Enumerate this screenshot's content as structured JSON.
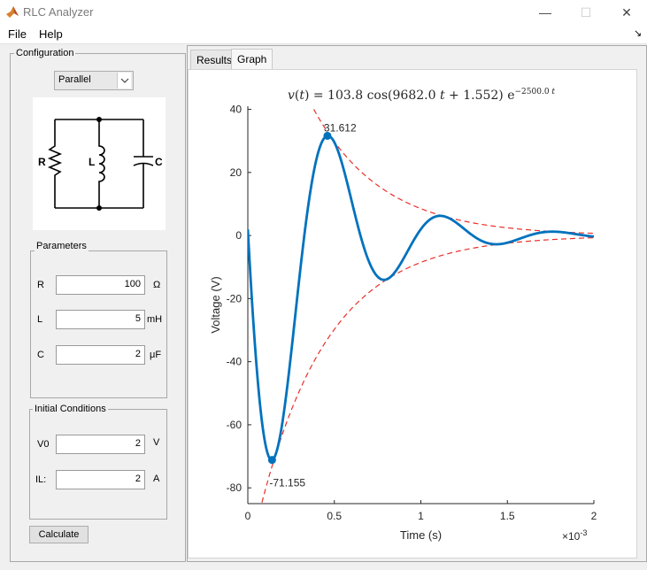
{
  "window": {
    "title": "RLC Analyzer",
    "minimize": "—",
    "maximize": "☐",
    "close": "✕"
  },
  "menu": {
    "file": "File",
    "help": "Help",
    "corner": "↘"
  },
  "config": {
    "title": "Configuration",
    "topology": {
      "selected": "Parallel"
    },
    "circuit": {
      "r_label": "R",
      "l_label": "L",
      "c_label": "C"
    }
  },
  "parameters": {
    "title": "Parameters",
    "R": {
      "label": "R",
      "value": "100",
      "unit": "Ω"
    },
    "L": {
      "label": "L",
      "value": "5",
      "unit": "mH"
    },
    "C": {
      "label": "C",
      "value": "2",
      "unit": "μF"
    }
  },
  "initial": {
    "title": "Initial Conditions",
    "V0": {
      "label": "V0",
      "value": "2",
      "unit": "V"
    },
    "IL": {
      "label": "IL:",
      "value": "2",
      "unit": "A"
    }
  },
  "buttons": {
    "calculate": "Calculate"
  },
  "tabs": {
    "results": "Results",
    "graph": "Graph"
  },
  "chart_data": {
    "type": "line",
    "title": "v(t) = 103.8 cos(9682.0 t + 1.552) e^(−2500.0 t)",
    "equation": {
      "amplitude": 103.8,
      "omega": 9682.0,
      "phase": 1.552,
      "alpha": 2500.0
    },
    "xlabel": "Time (s)",
    "ylabel": "Voltage (V)",
    "x_multiplier": "×10^-3",
    "xlim": [
      0,
      2
    ],
    "ylim": [
      -85,
      41
    ],
    "xticks": [
      0,
      0.5,
      1,
      1.5,
      2
    ],
    "yticks": [
      -80,
      -60,
      -40,
      -20,
      0,
      20,
      40
    ],
    "series": [
      {
        "name": "v(t)",
        "color": "#0072bd",
        "style": "solid"
      },
      {
        "name": "envelope",
        "color": "#e8302a",
        "style": "dashed"
      }
    ],
    "markers": [
      {
        "x": 0.46,
        "y": 31.612,
        "label": "31.612"
      },
      {
        "x": 0.14,
        "y": -71.155,
        "label": "-71.155"
      }
    ],
    "grid": false
  },
  "colors": {
    "curve": "#0072bd",
    "envelope": "#e8302a"
  }
}
